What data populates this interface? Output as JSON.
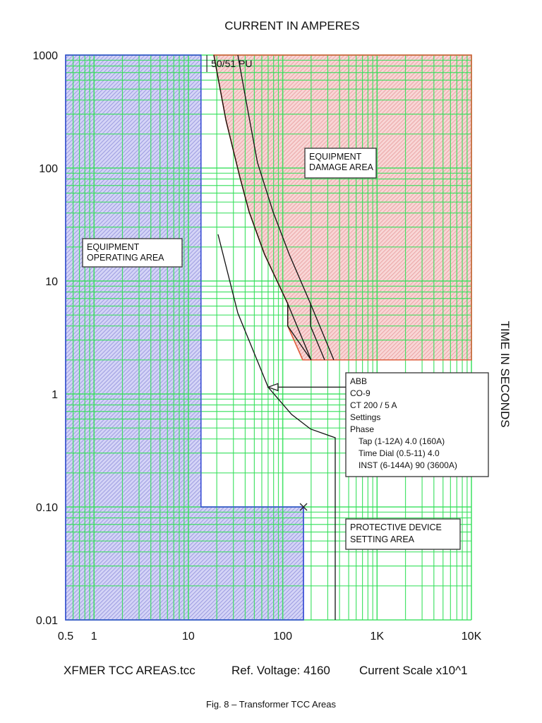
{
  "chart_data": {
    "type": "line",
    "title": "CURRENT IN AMPERES",
    "xlabel": "CURRENT IN AMPERES",
    "ylabel": "TIME IN SECONDS",
    "x_scale": "log",
    "y_scale": "log",
    "xlim": [
      0.5,
      10000
    ],
    "ylim": [
      0.01,
      1000
    ],
    "grid": true,
    "x_ticks": [
      {
        "v": 0.5,
        "label": "0.5"
      },
      {
        "v": 1,
        "label": "1"
      },
      {
        "v": 10,
        "label": "10"
      },
      {
        "v": 100,
        "label": "100"
      },
      {
        "v": 1000,
        "label": "1K"
      },
      {
        "v": 10000,
        "label": "10K"
      }
    ],
    "y_ticks": [
      {
        "v": 1000,
        "label": "1000"
      },
      {
        "v": 100,
        "label": "100"
      },
      {
        "v": 10,
        "label": "10"
      },
      {
        "v": 1,
        "label": "1"
      },
      {
        "v": 0.1,
        "label": "0.10"
      },
      {
        "v": 0.01,
        "label": "0.01"
      }
    ],
    "areas": {
      "operating": {
        "label_lines": [
          "EQUIPMENT",
          "OPERATING AREA"
        ],
        "color": "#3b4fd6",
        "fill": "#b8b8ee",
        "points": [
          [
            0.5,
            1000
          ],
          [
            13.6,
            1000
          ],
          [
            13.6,
            0.1
          ],
          [
            166,
            0.1
          ],
          [
            166,
            0.01
          ],
          [
            0.5,
            0.01
          ]
        ]
      },
      "damage": {
        "label_lines": [
          "EQUIPMENT",
          "DAMAGE AREA"
        ],
        "color": "#e06040",
        "fill": "#f2b4b4",
        "points": [
          [
            18.6,
            1000
          ],
          [
            10000,
            1000
          ],
          [
            10000,
            2
          ],
          [
            163,
            2
          ],
          [
            113,
            4
          ],
          [
            113,
            6.3
          ],
          [
            64,
            17.3
          ],
          [
            44,
            41
          ],
          [
            35,
            84
          ],
          [
            25,
            266
          ],
          [
            18.6,
            1000
          ]
        ]
      },
      "protective": {
        "label_lines": [
          "PROTECTIVE DEVICE",
          "SETTING AREA"
        ]
      }
    },
    "series": [
      {
        "name": "damage-curve-1",
        "color": "#111111",
        "points": [
          [
            18.6,
            1000
          ],
          [
            25,
            266
          ],
          [
            35,
            84
          ],
          [
            44,
            41
          ],
          [
            64,
            17.3
          ],
          [
            113,
            6.3
          ],
          [
            200,
            2
          ]
        ]
      },
      {
        "name": "damage-curve-1b",
        "color": "#111111",
        "points": [
          [
            113,
            6.3
          ],
          [
            113,
            4
          ],
          [
            200,
            2
          ]
        ]
      },
      {
        "name": "damage-curve-2",
        "color": "#111111",
        "points": [
          [
            33.4,
            1000
          ],
          [
            41.8,
            355
          ],
          [
            54,
            112
          ],
          [
            79,
            41
          ],
          [
            117,
            17.3
          ],
          [
            197,
            6.3
          ],
          [
            348,
            2
          ]
        ]
      },
      {
        "name": "damage-curve-2b",
        "color": "#111111",
        "points": [
          [
            197,
            6.3
          ],
          [
            197,
            4
          ],
          [
            278,
            2
          ]
        ]
      },
      {
        "name": "relay-curve",
        "color": "#111111",
        "points": [
          [
            20.6,
            25.9
          ],
          [
            33.4,
            5.2
          ],
          [
            70,
            1.15
          ],
          [
            124,
            0.66
          ],
          [
            197,
            0.49
          ],
          [
            360,
            0.41
          ],
          [
            360,
            0.01
          ]
        ]
      }
    ],
    "markers": {
      "pickup": {
        "label": "50/51 PU",
        "x": 15.7
      },
      "x_mark": {
        "x": 166,
        "y": 0.1
      }
    },
    "callout": {
      "arrow_to": [
        70,
        1.15
      ],
      "lines": [
        "ABB",
        "CO-9",
        "CT 200 / 5 A",
        "Settings",
        "Phase",
        "Tap (1-12A) 4.0 (160A)",
        "Time Dial (0.5-11) 4.0",
        "INST (6-144A) 90 (3600A)"
      ]
    },
    "grid_color": "#35e05a"
  },
  "footer": {
    "file": "XFMER TCC AREAS.tcc",
    "ref_voltage": "Ref. Voltage: 4160",
    "scale": "Current Scale x10^1",
    "caption": "Fig. 8 – Transformer TCC Areas"
  }
}
